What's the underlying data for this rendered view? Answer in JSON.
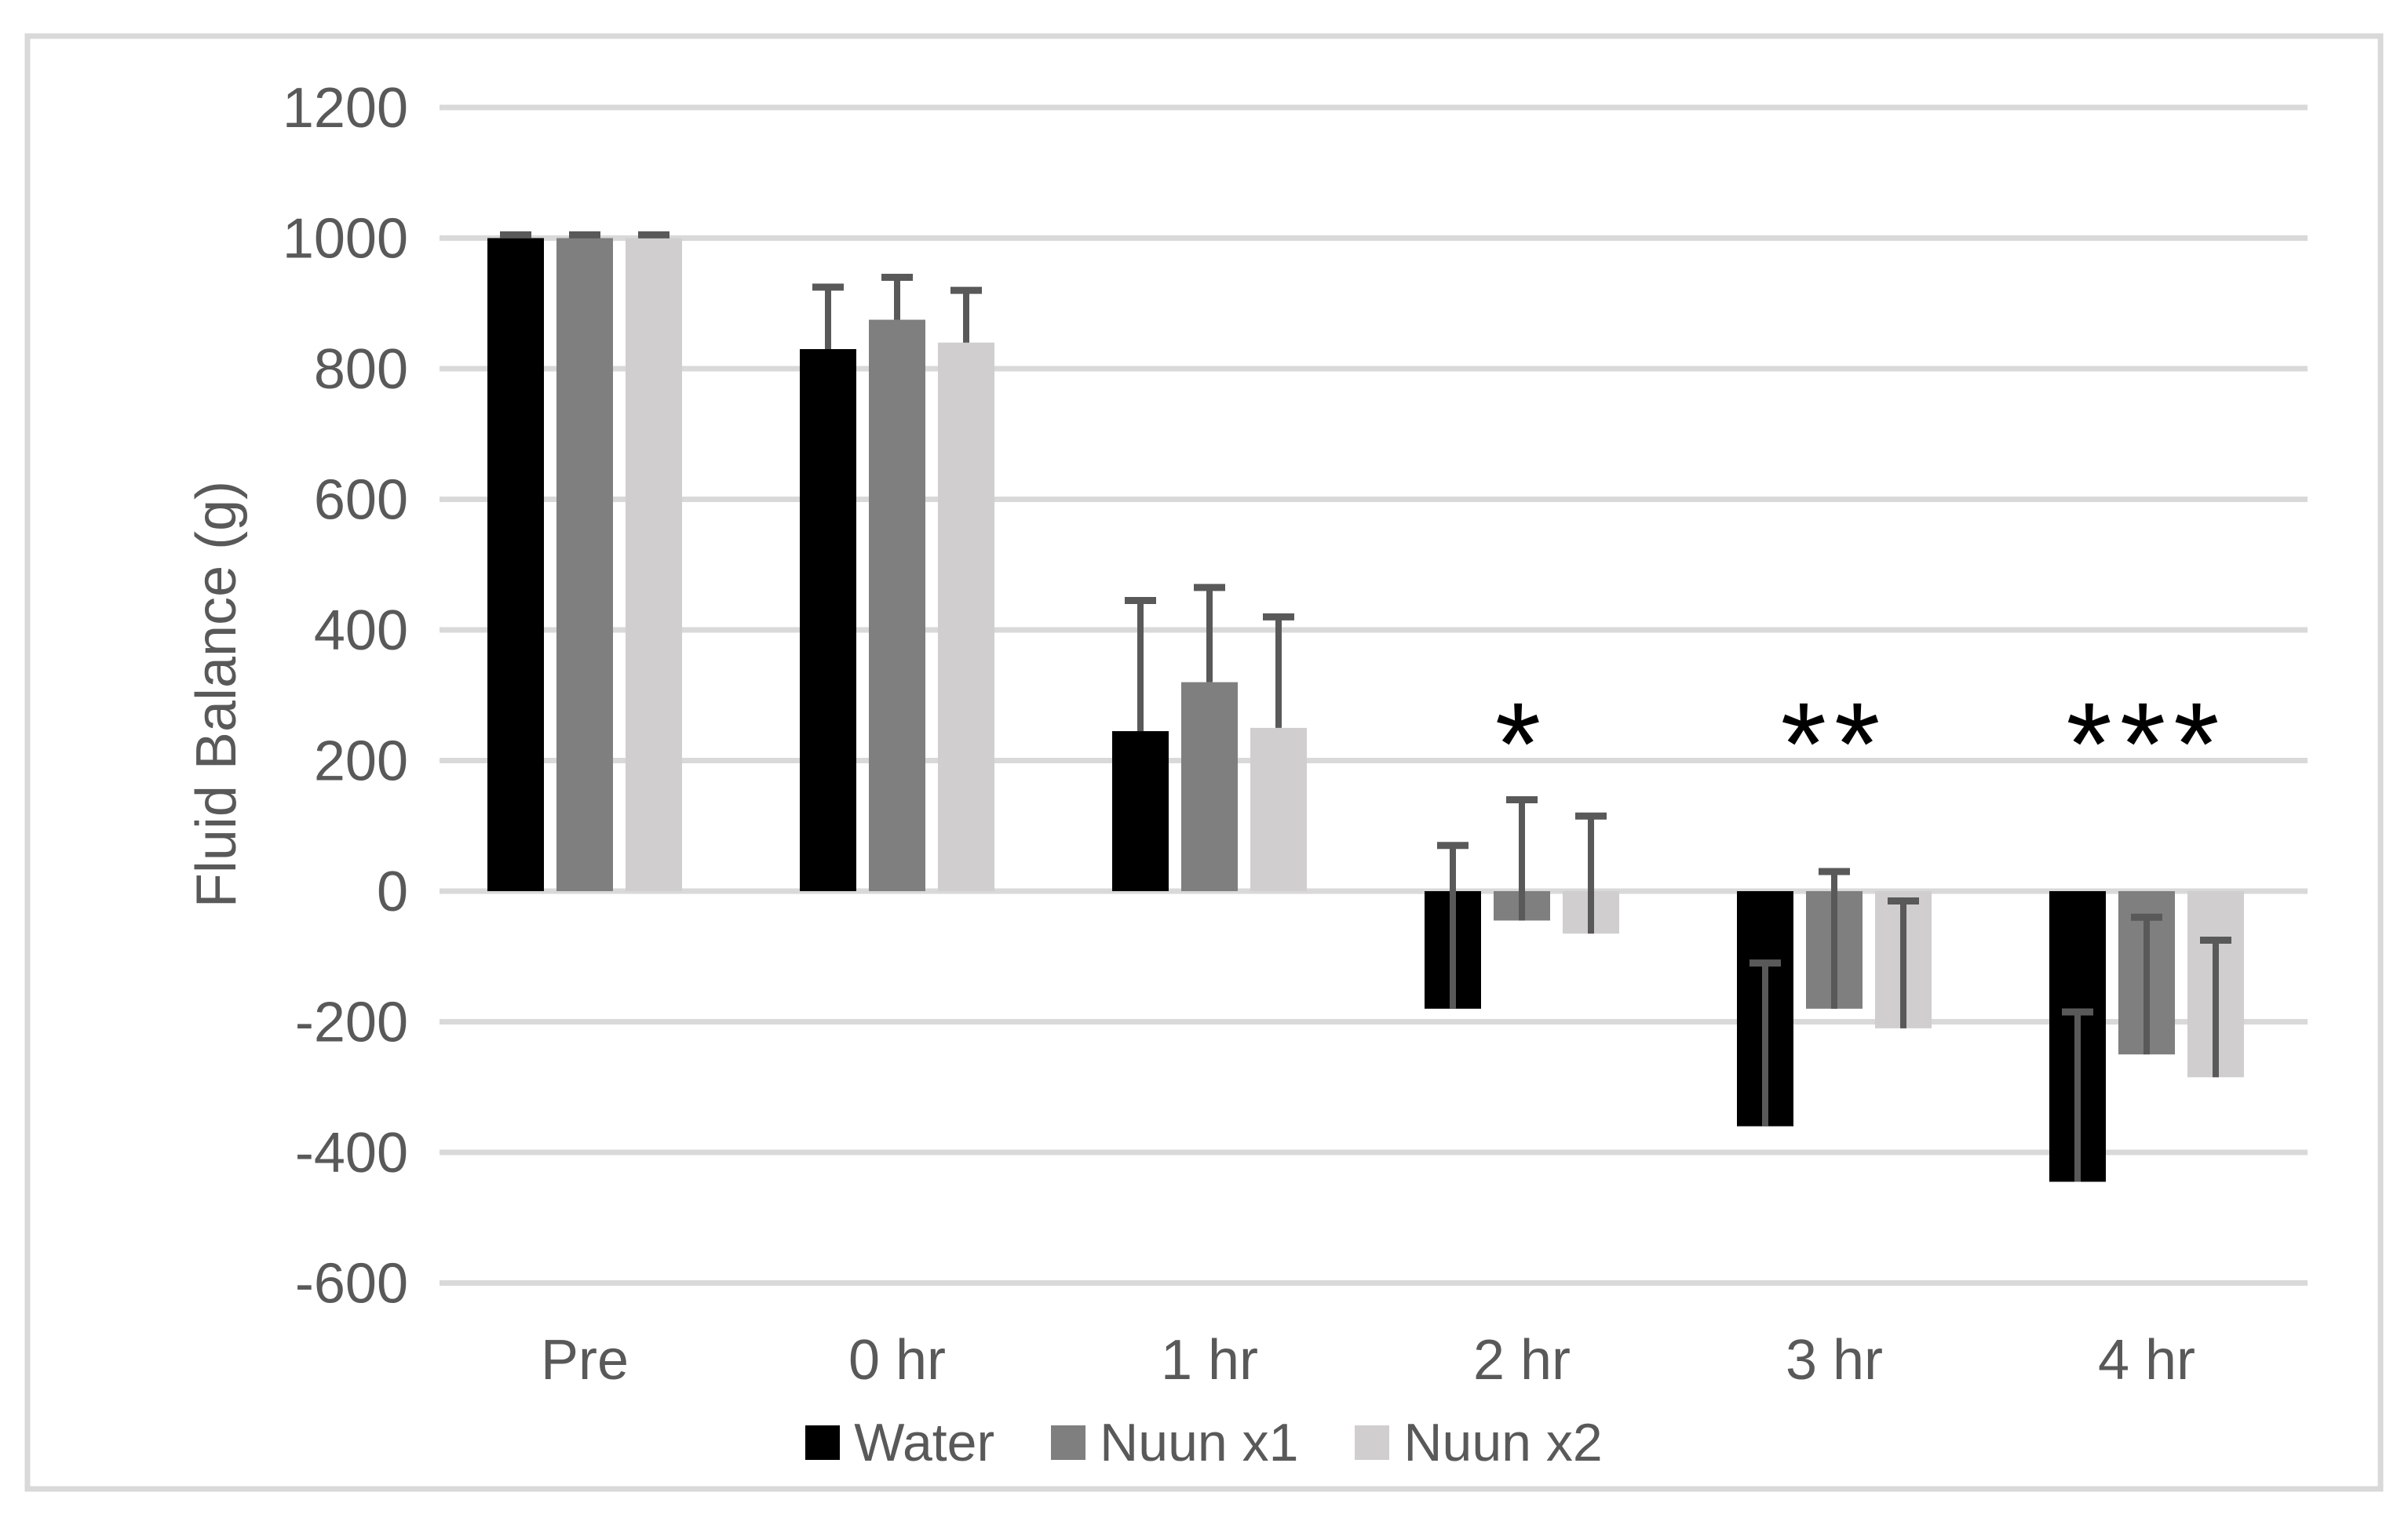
{
  "chart_data": {
    "type": "bar",
    "title": "",
    "xlabel": "",
    "ylabel": "Fluid Balance (g)",
    "categories": [
      "Pre",
      "0 hr",
      "1 hr",
      "2 hr",
      "3 hr",
      "4 hr"
    ],
    "series": [
      {
        "name": "Water",
        "color": "#000000",
        "values": [
          1000,
          830,
          245,
          -180,
          -360,
          -445
        ],
        "errors_plus": [
          5,
          95,
          200,
          250,
          250,
          260
        ]
      },
      {
        "name": "Nuun x1",
        "color": "#7f7f7f",
        "values": [
          1000,
          875,
          320,
          -45,
          -180,
          -250
        ],
        "errors_plus": [
          5,
          65,
          145,
          185,
          210,
          210
        ]
      },
      {
        "name": "Nuun x2",
        "color": "#d0cece",
        "values": [
          1000,
          840,
          250,
          -65,
          -210,
          -285
        ],
        "errors_plus": [
          5,
          80,
          170,
          180,
          195,
          210
        ]
      }
    ],
    "annotations": [
      {
        "category": "2 hr",
        "text": "*"
      },
      {
        "category": "3 hr",
        "text": "**"
      },
      {
        "category": "4 hr",
        "text": "***"
      }
    ],
    "y_axis": {
      "min": -600,
      "max": 1200,
      "step": 200,
      "tick_labels_top_to_bottom": [
        "1200",
        "1000",
        "800",
        "600",
        "400",
        "200",
        "0",
        "-200",
        "-400",
        "-600"
      ]
    },
    "grid": true,
    "legend_position": "bottom",
    "colors": {
      "background": "#ffffff",
      "gridline": "#d9d9d9",
      "frame_border": "#d9d9d9",
      "error_bar": "#595959",
      "text": "#595959",
      "significance_marker": "#000000"
    }
  }
}
